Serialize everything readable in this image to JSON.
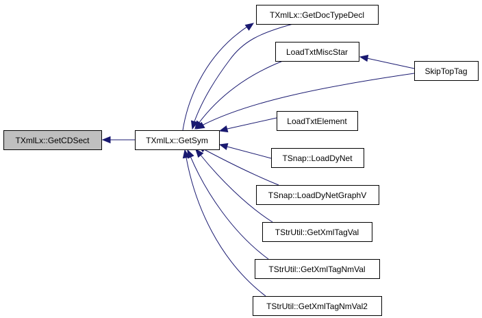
{
  "graph": {
    "edge_color": "#191970",
    "focus_fill": "#bfbfbf",
    "nodes": [
      {
        "id": "cdsect",
        "label": "TXmlLx::GetCDSect",
        "focus": true
      },
      {
        "id": "getsym",
        "label": "TXmlLx::GetSym"
      },
      {
        "id": "doctype",
        "label": "TXmlLx::GetDocTypeDecl"
      },
      {
        "id": "miscstar",
        "label": "LoadTxtMiscStar"
      },
      {
        "id": "skiptop",
        "label": "SkipTopTag"
      },
      {
        "id": "element",
        "label": "LoadTxtElement"
      },
      {
        "id": "dynet",
        "label": "TSnap::LoadDyNet"
      },
      {
        "id": "dynetgv",
        "label": "TSnap::LoadDyNetGraphV"
      },
      {
        "id": "tagval",
        "label": "TStrUtil::GetXmlTagVal"
      },
      {
        "id": "tagnmval",
        "label": "TStrUtil::GetXmlTagNmVal"
      },
      {
        "id": "tagnmval2",
        "label": "TStrUtil::GetXmlTagNmVal2"
      }
    ],
    "edges": [
      {
        "from": "getsym",
        "to": "cdsect"
      },
      {
        "from": "doctype",
        "to": "getsym"
      },
      {
        "from": "getsym",
        "to": "doctype"
      },
      {
        "from": "miscstar",
        "to": "getsym"
      },
      {
        "from": "skiptop",
        "to": "getsym"
      },
      {
        "from": "skiptop",
        "to": "miscstar"
      },
      {
        "from": "element",
        "to": "getsym"
      },
      {
        "from": "dynet",
        "to": "getsym"
      },
      {
        "from": "dynetgv",
        "to": "getsym"
      },
      {
        "from": "tagval",
        "to": "getsym"
      },
      {
        "from": "tagnmval",
        "to": "getsym"
      },
      {
        "from": "tagnmval2",
        "to": "getsym"
      }
    ]
  }
}
